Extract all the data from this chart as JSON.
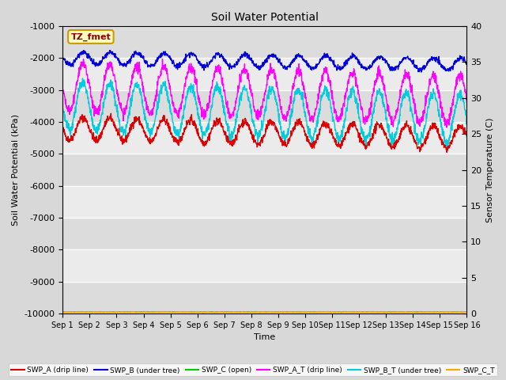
{
  "title": "Soil Water Potential",
  "ylabel_left": "Soil Water Potential (kPa)",
  "ylabel_right": "Sensor Temperature (C)",
  "xlabel": "Time",
  "ylim_left": [
    -10000,
    -1000
  ],
  "ylim_right": [
    0,
    40
  ],
  "yticks_left": [
    -10000,
    -9000,
    -8000,
    -7000,
    -6000,
    -5000,
    -4000,
    -3000,
    -2000,
    -1000
  ],
  "yticks_right": [
    0,
    5,
    10,
    15,
    20,
    25,
    30,
    35,
    40
  ],
  "xtick_labels": [
    "Sep 1",
    "Sep 2",
    "Sep 3",
    "Sep 4",
    "Sep 5",
    "Sep 6",
    "Sep 7",
    "Sep 8",
    "Sep 9",
    "Sep 10",
    "Sep 11",
    "Sep 12",
    "Sep 13",
    "Sep 14",
    "Sep 15",
    "Sep 16"
  ],
  "n_days": 15,
  "n_points": 1500,
  "annotation_text": "TZ_fmet",
  "bg_color": "#d8d8d8",
  "plot_bg_color_light": "#ebebeb",
  "plot_bg_color_dark": "#dcdcdc",
  "grid_color": "#ffffff",
  "series": [
    {
      "name": "SWP_A (drip line)",
      "color": "#dd0000",
      "base": -4200,
      "amp": 350,
      "phase": 3.14,
      "trend": -300,
      "noise": 60,
      "freq": 1.0
    },
    {
      "name": "SWP_B (under tree)",
      "color": "#0000dd",
      "base": -2000,
      "amp": 200,
      "phase": 3.0,
      "trend": -200,
      "noise": 40,
      "freq": 1.0
    },
    {
      "name": "SWP_C (open)",
      "color": "#00cc00",
      "base": -9950,
      "amp": 0,
      "phase": 0.0,
      "trend": 0,
      "noise": 5,
      "freq": 1.0
    },
    {
      "name": "SWP_A_T (drip line)",
      "color": "#ff00ff",
      "base": -2900,
      "amp": 750,
      "phase": 3.14,
      "trend": -400,
      "noise": 80,
      "freq": 1.0
    },
    {
      "name": "SWP_B_T (under tree)",
      "color": "#00ccdd",
      "base": -3500,
      "amp": 750,
      "phase": 3.14,
      "trend": -400,
      "noise": 80,
      "freq": 1.0
    },
    {
      "name": "SWP_C_T",
      "color": "#ffaa00",
      "base": -9950,
      "amp": 0,
      "phase": 0.0,
      "trend": 0,
      "noise": 5,
      "freq": 1.0
    }
  ]
}
